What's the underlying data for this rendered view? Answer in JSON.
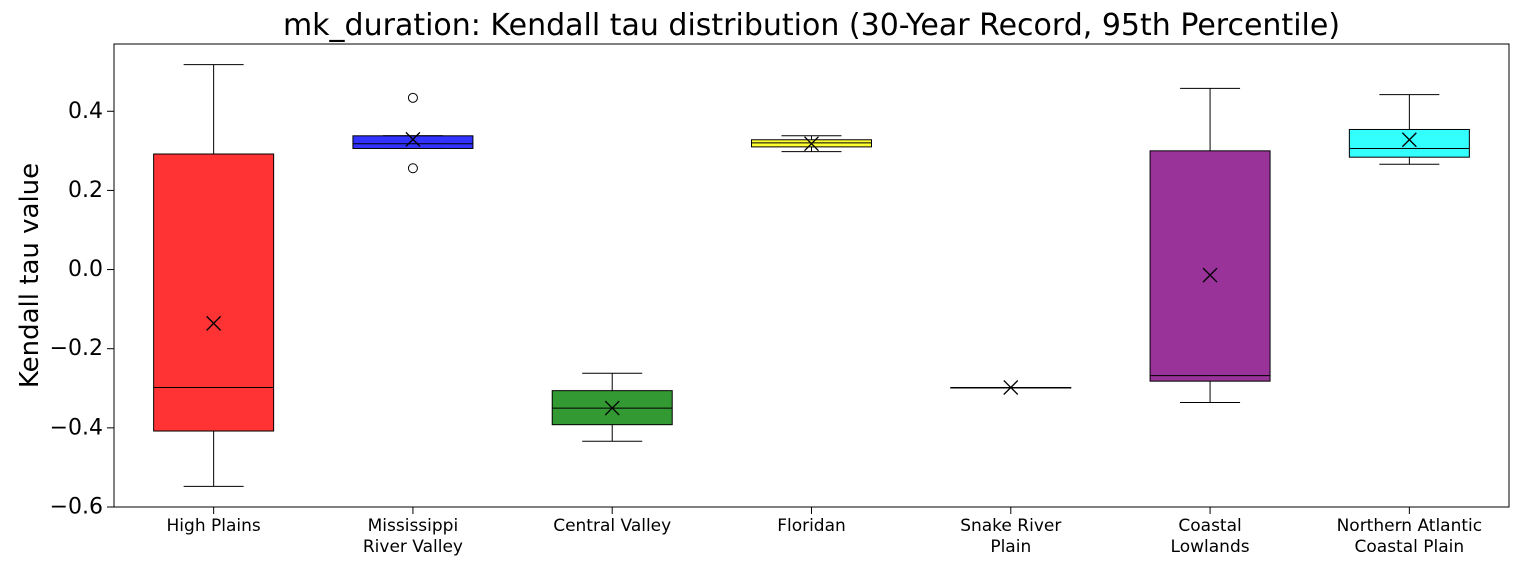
{
  "chart_data": {
    "type": "box",
    "title": "mk_duration: Kendall tau distribution (30-Year Record, 95th Percentile)",
    "xlabel": "",
    "ylabel": "Kendall tau value",
    "ylim": [
      -0.6,
      0.57
    ],
    "yticks": [
      -0.6,
      -0.4,
      -0.2,
      0.0,
      0.2,
      0.4
    ],
    "ytick_labels": [
      "−0.6",
      "−0.4",
      "−0.2",
      "0.0",
      "0.2",
      "0.4"
    ],
    "grid": false,
    "categories": [
      {
        "label_lines": [
          "High Plains"
        ],
        "color": "#ff0000",
        "whisker_low": -0.548,
        "q1": -0.408,
        "median": -0.298,
        "q3": 0.292,
        "whisker_high": 0.518,
        "mean": -0.136,
        "outliers": []
      },
      {
        "label_lines": [
          "Mississippi",
          "River Valley"
        ],
        "color": "#0000ff",
        "whisker_low": 0.306,
        "q1": 0.306,
        "median": 0.318,
        "q3": 0.338,
        "whisker_high": 0.338,
        "mean": 0.329,
        "outliers": [
          0.434,
          0.256
        ]
      },
      {
        "label_lines": [
          "Central Valley"
        ],
        "color": "#008000",
        "whisker_low": -0.434,
        "q1": -0.392,
        "median": -0.35,
        "q3": -0.306,
        "whisker_high": -0.262,
        "mean": -0.35,
        "outliers": []
      },
      {
        "label_lines": [
          "Floridan"
        ],
        "color": "#ffff00",
        "whisker_low": 0.298,
        "q1": 0.31,
        "median": 0.32,
        "q3": 0.328,
        "whisker_high": 0.338,
        "mean": 0.318,
        "outliers": []
      },
      {
        "label_lines": [
          "Snake River",
          "Plain"
        ],
        "color": "#ff0000",
        "whisker_low": -0.298,
        "q1": -0.298,
        "median": -0.298,
        "q3": -0.298,
        "whisker_high": -0.298,
        "mean": -0.298,
        "outliers": []
      },
      {
        "label_lines": [
          "Coastal",
          "Lowlands"
        ],
        "color": "#800080",
        "whisker_low": -0.336,
        "q1": -0.282,
        "median": -0.268,
        "q3": 0.3,
        "whisker_high": 0.458,
        "mean": -0.014,
        "outliers": []
      },
      {
        "label_lines": [
          "Northern Atlantic",
          "Coastal Plain"
        ],
        "color": "#00ffff",
        "whisker_low": 0.266,
        "q1": 0.284,
        "median": 0.306,
        "q3": 0.354,
        "whisker_high": 0.442,
        "mean": 0.328,
        "outliers": []
      }
    ]
  }
}
